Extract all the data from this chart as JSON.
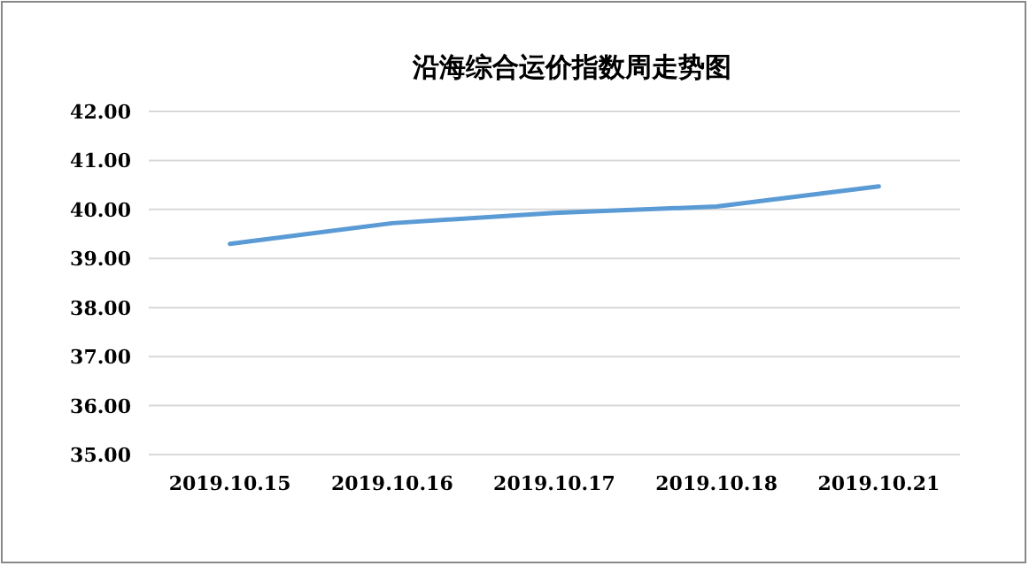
{
  "chart_data": {
    "type": "line",
    "title": "沿海综合运价指数周走势图",
    "categories": [
      "2019.10.15",
      "2019.10.16",
      "2019.10.17",
      "2019.10.18",
      "2019.10.21"
    ],
    "series": [
      {
        "color": "#5b9bd5",
        "values": [
          39.3,
          39.72,
          39.93,
          40.06,
          40.47
        ]
      }
    ],
    "ylim": [
      35,
      42
    ],
    "yticks": [
      {
        "value": 35,
        "label": "35.00"
      },
      {
        "value": 36,
        "label": "36.00"
      },
      {
        "value": 37,
        "label": "37.00"
      },
      {
        "value": 38,
        "label": "38.00"
      },
      {
        "value": 39,
        "label": "39.00"
      },
      {
        "value": 40,
        "label": "40.00"
      },
      {
        "value": 41,
        "label": "41.00"
      },
      {
        "value": 42,
        "label": "42.00"
      }
    ],
    "grid": "y",
    "marker": "none",
    "line_style": "solid"
  }
}
